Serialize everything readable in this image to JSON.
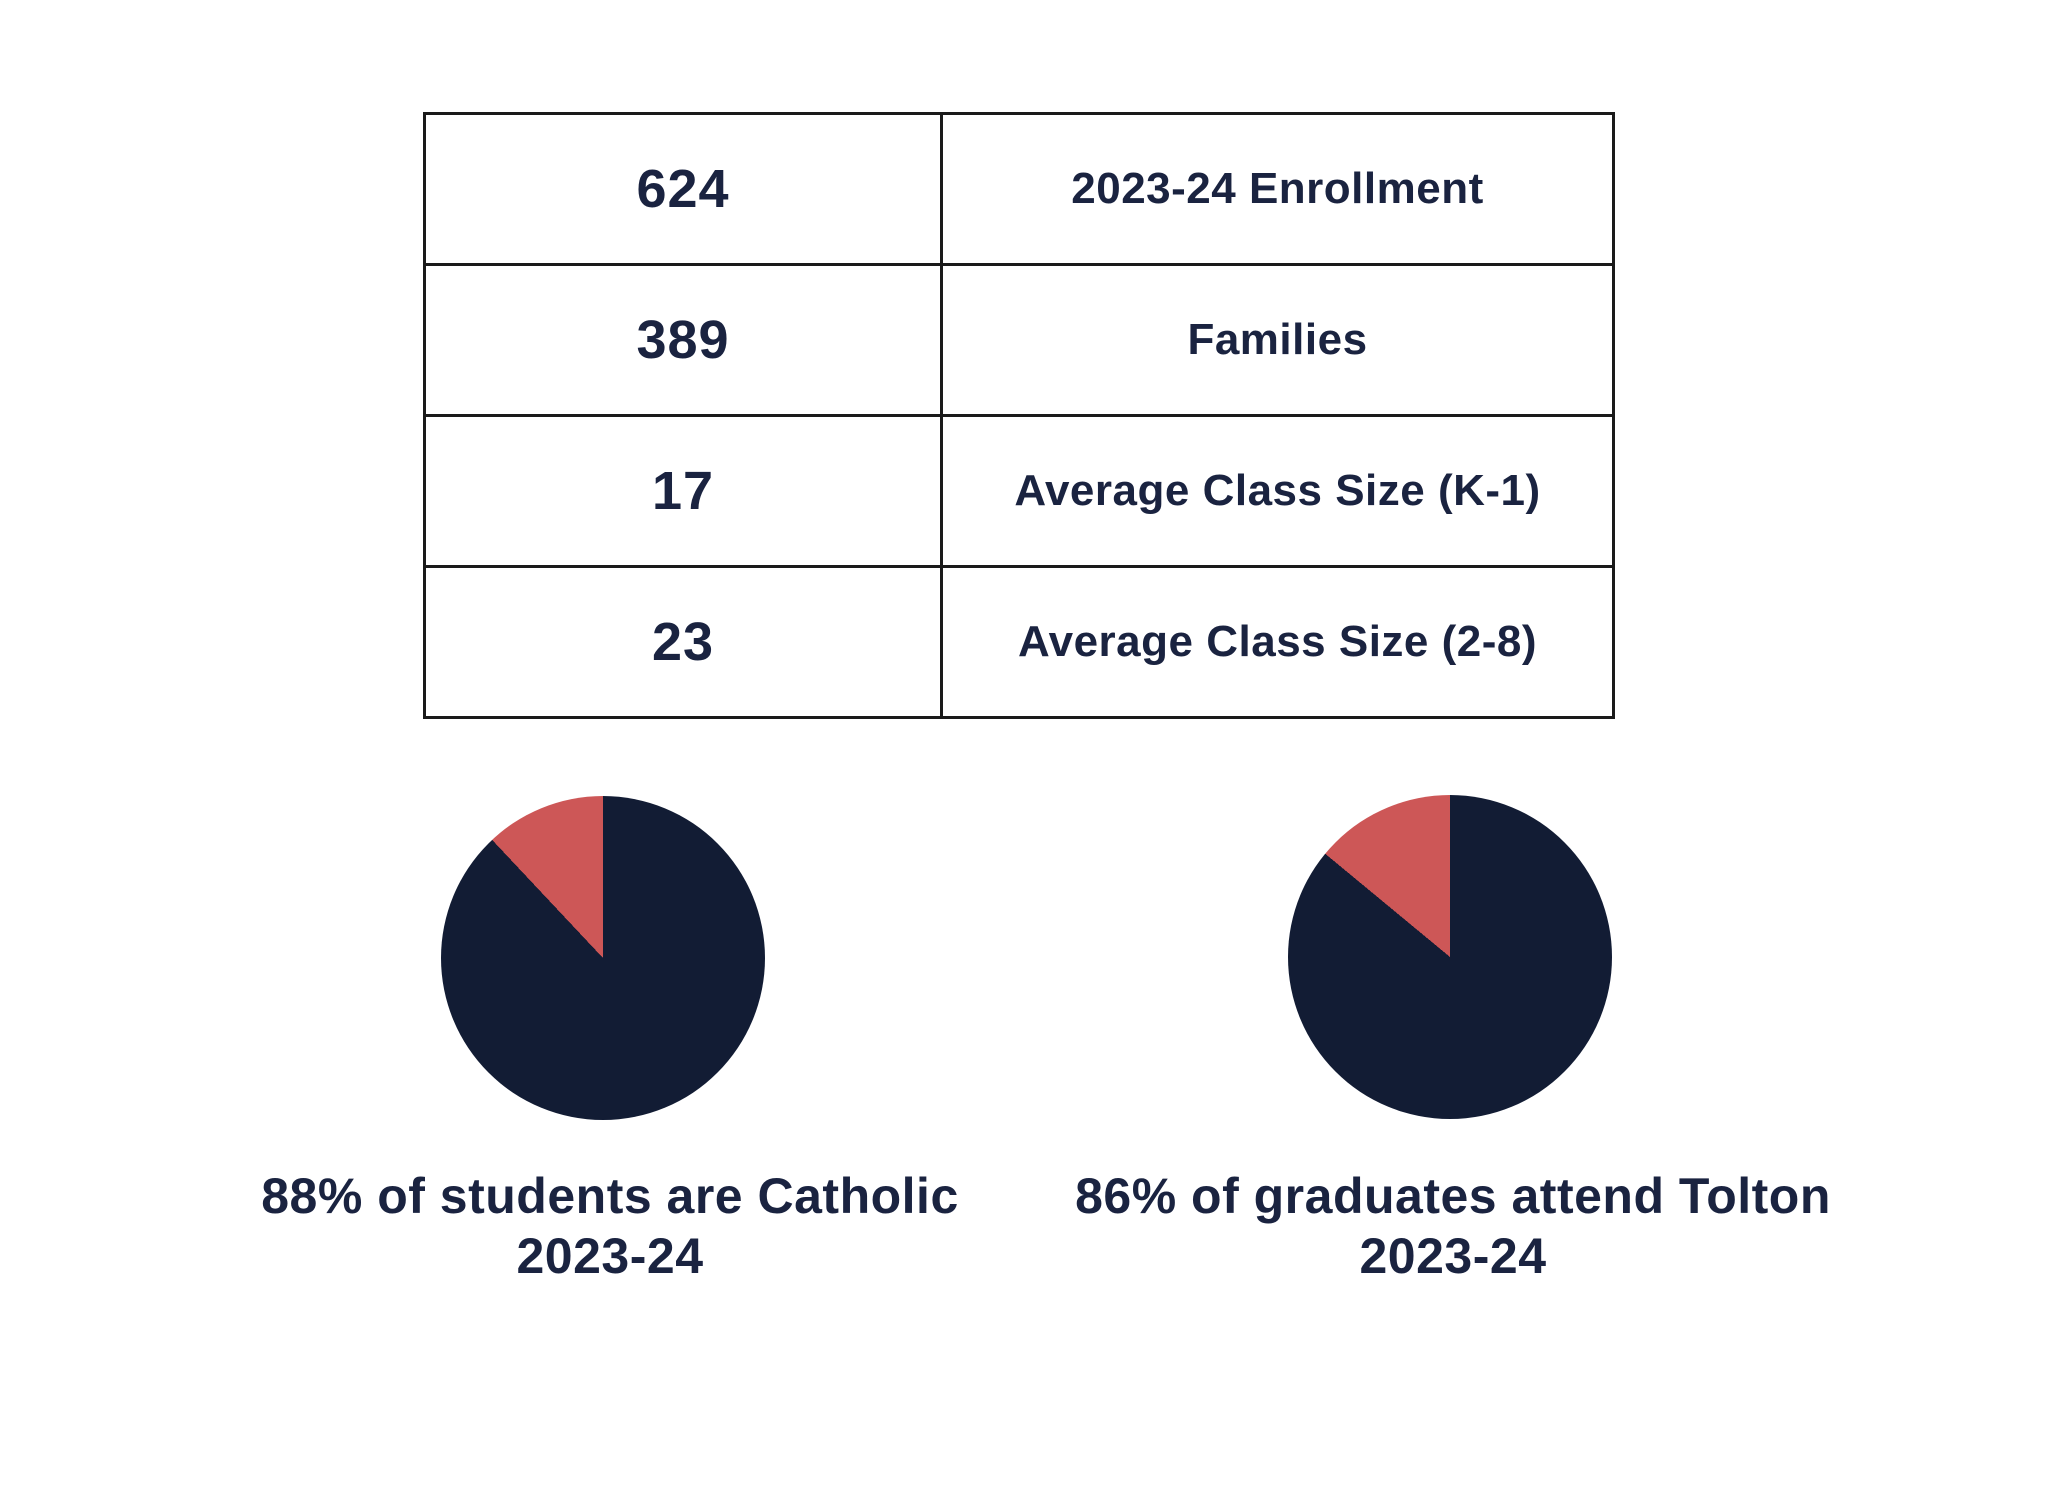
{
  "page": {
    "background": "#ffffff"
  },
  "colors": {
    "navy": "#121c34",
    "coral": "#cd5757",
    "text": "#1a2340",
    "table_border": "#1a1a1a"
  },
  "stats_table": {
    "rows": [
      {
        "value": "624",
        "label": "2023-24 Enrollment"
      },
      {
        "value": "389",
        "label": "Families"
      },
      {
        "value": "17",
        "label": "Average Class Size (K-1)"
      },
      {
        "value": "23",
        "label": "Average Class Size (2-8)"
      }
    ]
  },
  "chart_data": [
    {
      "type": "pie",
      "title": "88% of students are Catholic 2023-24",
      "caption_lines": [
        "88% of students are Catholic",
        "2023-24"
      ],
      "slices": [
        {
          "name": "Catholic",
          "value": 88,
          "color": "#121c34"
        },
        {
          "name": "Other",
          "value": 12,
          "color": "#cd5757"
        }
      ],
      "start_angle_deg": 0,
      "direction": "clockwise",
      "legend": "none"
    },
    {
      "type": "pie",
      "title": "86% of graduates attend Tolton 2023-24",
      "caption_lines": [
        "86% of graduates attend Tolton",
        "2023-24"
      ],
      "slices": [
        {
          "name": "Attend Tolton",
          "value": 86,
          "color": "#121c34"
        },
        {
          "name": "Other",
          "value": 14,
          "color": "#cd5757"
        }
      ],
      "start_angle_deg": 0,
      "direction": "clockwise",
      "legend": "none"
    }
  ]
}
